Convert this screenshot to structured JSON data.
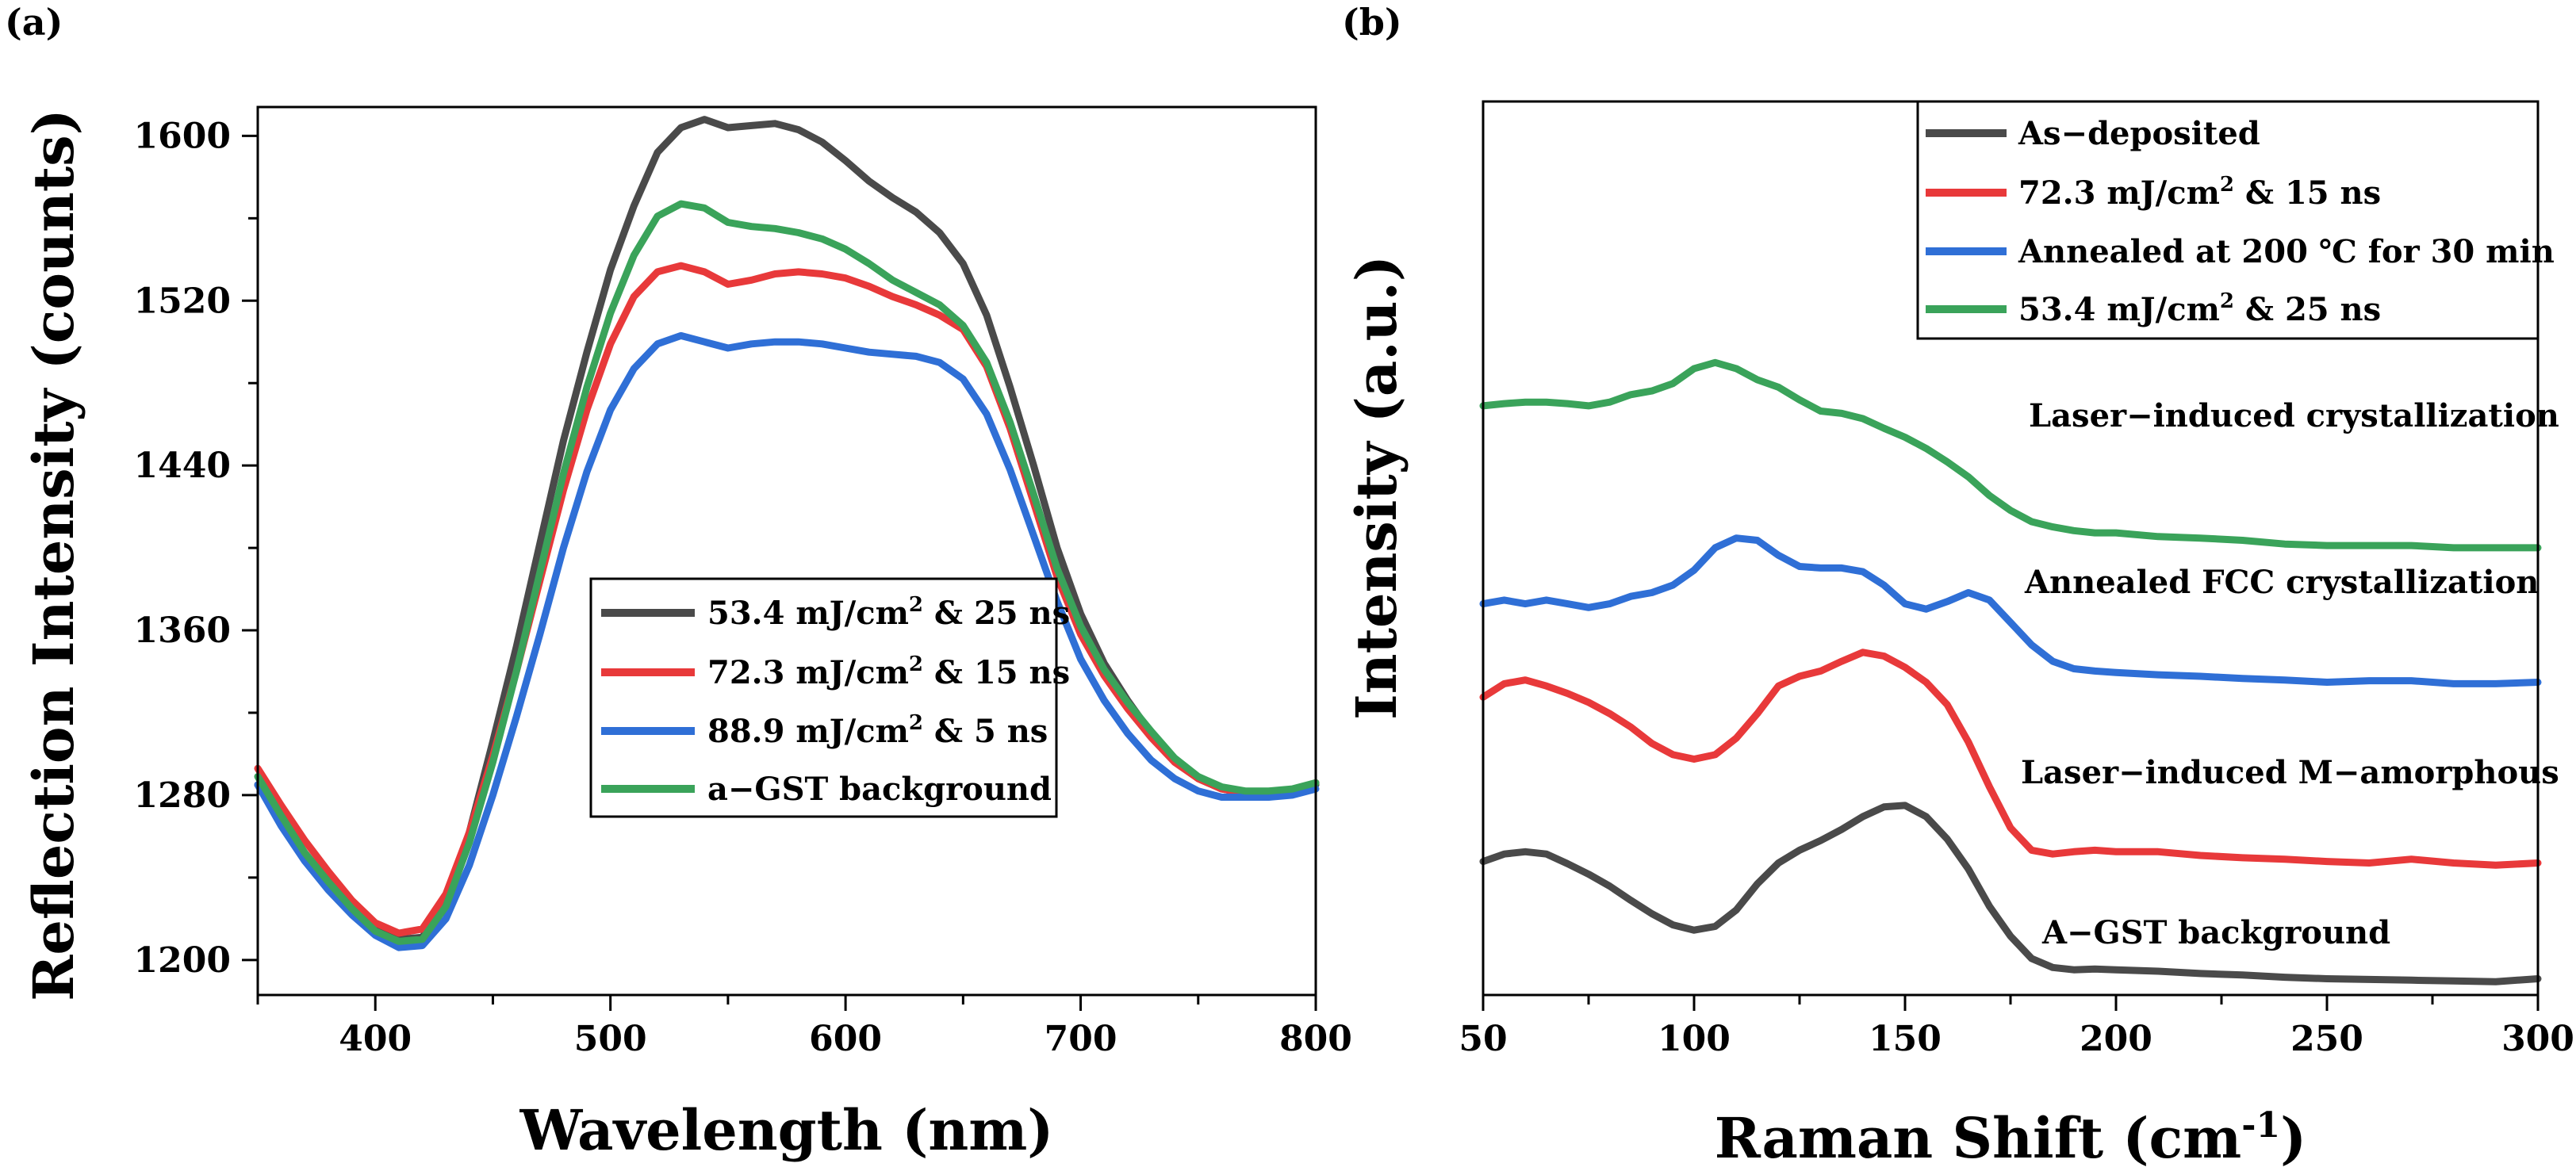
{
  "figure": {
    "panel_a_label": "(a)",
    "panel_b_label": "(b)"
  },
  "chart_data": [
    {
      "type": "line",
      "panel": "(a)",
      "title": "",
      "xlabel": "Wavelength (nm)",
      "ylabel": "Reflection Intensity (counts)",
      "xlim": [
        350,
        800
      ],
      "ylim": [
        1183,
        1614
      ],
      "xticks": [
        400,
        500,
        600,
        700,
        800
      ],
      "yticks": [
        1200,
        1280,
        1360,
        1440,
        1520,
        1600
      ],
      "legend_position": "center",
      "x": [
        350,
        360,
        370,
        380,
        390,
        400,
        410,
        420,
        430,
        440,
        450,
        460,
        470,
        480,
        490,
        500,
        510,
        520,
        530,
        540,
        550,
        560,
        570,
        580,
        590,
        600,
        610,
        620,
        630,
        640,
        650,
        660,
        670,
        680,
        690,
        700,
        710,
        720,
        730,
        740,
        750,
        760,
        770,
        780,
        790,
        800
      ],
      "series": [
        {
          "name": "53.4 mJ/cm2 & 25 ns",
          "label_main": "53.4 mJ/cm",
          "label_sup": "2",
          "label_tail": " & 25 ns",
          "color": "#4a4a4a",
          "values": [
            1285,
            1268,
            1252,
            1238,
            1226,
            1215,
            1210,
            1211,
            1228,
            1262,
            1306,
            1352,
            1402,
            1452,
            1495,
            1535,
            1566,
            1592,
            1604,
            1608,
            1604,
            1605,
            1606,
            1603,
            1597,
            1588,
            1578,
            1570,
            1563,
            1553,
            1538,
            1513,
            1478,
            1440,
            1400,
            1368,
            1344,
            1326,
            1310,
            1297,
            1288,
            1283,
            1281,
            1281,
            1282,
            1285
          ]
        },
        {
          "name": "72.3 mJ/cm2 & 15 ns",
          "label_main": "72.3 mJ/cm",
          "label_sup": "2",
          "label_tail": " & 15 ns",
          "color": "#e8393a",
          "values": [
            1293,
            1275,
            1258,
            1243,
            1229,
            1218,
            1213,
            1215,
            1232,
            1262,
            1299,
            1340,
            1384,
            1428,
            1467,
            1499,
            1522,
            1534,
            1537,
            1534,
            1528,
            1530,
            1533,
            1534,
            1533,
            1531,
            1527,
            1522,
            1518,
            1513,
            1506,
            1488,
            1458,
            1422,
            1386,
            1358,
            1338,
            1322,
            1308,
            1296,
            1288,
            1283,
            1281,
            1281,
            1282,
            1286
          ]
        },
        {
          "name": "88.9 mJ/cm2 & 5 ns",
          "label_main": "88.9 mJ/cm",
          "label_sup": "2",
          "label_tail": " & 5 ns",
          "color": "#2f6fd6",
          "values": [
            1285,
            1265,
            1248,
            1234,
            1222,
            1212,
            1206,
            1207,
            1220,
            1246,
            1280,
            1318,
            1358,
            1400,
            1437,
            1467,
            1487,
            1499,
            1503,
            1500,
            1497,
            1499,
            1500,
            1500,
            1499,
            1497,
            1495,
            1494,
            1493,
            1490,
            1482,
            1465,
            1438,
            1406,
            1374,
            1346,
            1326,
            1310,
            1297,
            1288,
            1282,
            1279,
            1279,
            1279,
            1280,
            1283
          ]
        },
        {
          "name": "a-GST background",
          "label_main": "a−GST background",
          "label_sup": "",
          "label_tail": "",
          "color": "#3aa35a",
          "values": [
            1289,
            1270,
            1252,
            1238,
            1225,
            1214,
            1209,
            1210,
            1226,
            1257,
            1296,
            1340,
            1388,
            1436,
            1478,
            1514,
            1542,
            1561,
            1567,
            1565,
            1558,
            1556,
            1555,
            1553,
            1550,
            1545,
            1538,
            1530,
            1524,
            1518,
            1508,
            1490,
            1461,
            1426,
            1390,
            1362,
            1341,
            1325,
            1311,
            1298,
            1289,
            1284,
            1282,
            1282,
            1283,
            1286
          ]
        }
      ]
    },
    {
      "type": "line",
      "panel": "(b)",
      "title": "",
      "xlabel_main": "Raman Shift (cm",
      "xlabel_sup": "-1",
      "xlabel_tail": ")",
      "ylabel": "Intensity (a.u.)",
      "xlim": [
        50,
        300
      ],
      "ylim": [
        0,
        100
      ],
      "xticks": [
        50,
        100,
        150,
        200,
        250,
        300
      ],
      "yticks": [],
      "legend_position": "top-right",
      "x": [
        50,
        55,
        60,
        65,
        70,
        75,
        80,
        85,
        90,
        95,
        100,
        105,
        110,
        115,
        120,
        125,
        130,
        135,
        140,
        145,
        150,
        155,
        160,
        165,
        170,
        175,
        180,
        185,
        190,
        195,
        200,
        210,
        220,
        230,
        240,
        250,
        260,
        270,
        280,
        290,
        300
      ],
      "series": [
        {
          "name": "As-deposited",
          "label_main": "As−deposited",
          "label_sup": "",
          "label_tail": "",
          "color": "#4a4a4a",
          "values": [
            16.5,
            17.5,
            17.8,
            17.5,
            16.2,
            14.8,
            13.2,
            11.3,
            9.5,
            8.0,
            7.3,
            7.8,
            10.0,
            13.5,
            16.3,
            18.0,
            19.3,
            20.8,
            22.5,
            23.8,
            24.0,
            22.5,
            19.5,
            15.5,
            10.5,
            6.5,
            3.5,
            2.3,
            2.0,
            2.1,
            2.0,
            1.8,
            1.5,
            1.3,
            1.0,
            0.8,
            0.7,
            0.6,
            0.5,
            0.4,
            0.8
          ]
        },
        {
          "name": "72.3 mJ/cm2 & 15 ns",
          "label_main": "72.3 mJ/cm",
          "label_sup": "2",
          "label_tail": " & 15 ns",
          "color": "#e8393a",
          "values": [
            38.5,
            40.3,
            40.8,
            40.0,
            39.0,
            37.8,
            36.3,
            34.5,
            32.3,
            30.8,
            30.2,
            30.8,
            33.0,
            36.3,
            40.0,
            41.3,
            42.0,
            43.3,
            44.5,
            44.0,
            42.5,
            40.5,
            37.5,
            32.5,
            26.5,
            21.0,
            18.0,
            17.5,
            17.8,
            18.0,
            17.8,
            17.8,
            17.3,
            17.0,
            16.8,
            16.5,
            16.3,
            16.8,
            16.3,
            16.0,
            16.3
          ]
        },
        {
          "name": "Annealed at 200 ℃ for 30 min",
          "label_main": "Annealed at 200 ℃ for 30 min",
          "label_sup": "",
          "label_tail": "",
          "color": "#2f6fd6",
          "values": [
            51.0,
            51.5,
            51.0,
            51.5,
            51.0,
            50.5,
            51.0,
            52.0,
            52.5,
            53.5,
            55.5,
            58.5,
            59.8,
            59.5,
            57.5,
            56.0,
            55.8,
            55.8,
            55.3,
            53.5,
            51.0,
            50.3,
            51.3,
            52.5,
            51.5,
            48.5,
            45.5,
            43.3,
            42.3,
            42.0,
            41.8,
            41.5,
            41.3,
            41.0,
            40.8,
            40.5,
            40.7,
            40.7,
            40.3,
            40.3,
            40.5
          ]
        },
        {
          "name": "53.4 mJ/cm2 & 25 ns",
          "label_main": "53.4 mJ/cm",
          "label_sup": "2",
          "label_tail": " & 25 ns",
          "color": "#3aa35a",
          "values": [
            77.5,
            77.8,
            78.0,
            78.0,
            77.8,
            77.5,
            78.0,
            79.0,
            79.5,
            80.5,
            82.5,
            83.3,
            82.5,
            81.0,
            80.0,
            78.3,
            76.8,
            76.5,
            75.8,
            74.5,
            73.3,
            71.8,
            70.0,
            68.0,
            65.5,
            63.5,
            62.0,
            61.3,
            60.8,
            60.5,
            60.5,
            60.0,
            59.8,
            59.5,
            59.0,
            58.8,
            58.8,
            58.8,
            58.5,
            58.5,
            58.5
          ]
        }
      ],
      "annotations": [
        "Laser−induced crystallization",
        "Annealed FCC crystallization",
        "Laser−induced M−amorphous",
        "A−GST background"
      ]
    }
  ]
}
